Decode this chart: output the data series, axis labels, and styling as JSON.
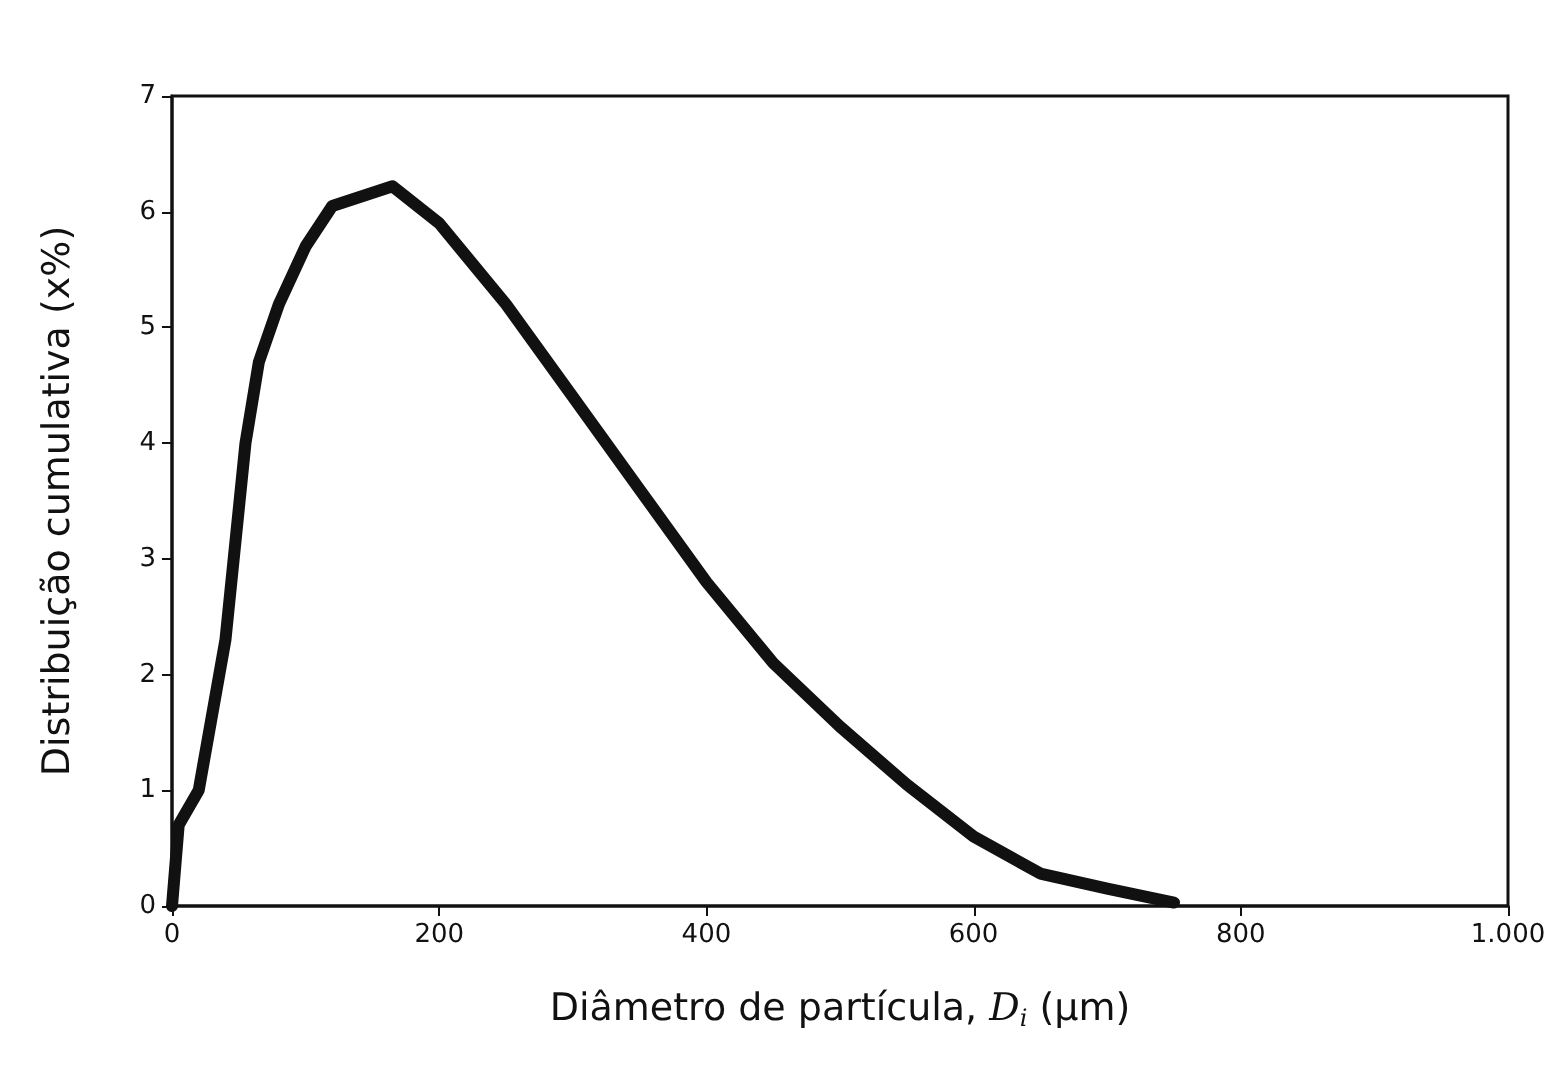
{
  "chart_data": {
    "type": "line",
    "xlabel": "Diâmetro de partícula, D$_{i}$ (µm)",
    "ylabel": "Distribuição cumulativa (x%)",
    "x": [
      0,
      5,
      20,
      40,
      55,
      65,
      80,
      100,
      120,
      165,
      200,
      250,
      300,
      350,
      400,
      450,
      500,
      550,
      600,
      650,
      700,
      750
    ],
    "series": [
      {
        "color": "#111111",
        "values": [
          0,
          0.7,
          1,
          2.3,
          4,
          4.7,
          5.2,
          5.7,
          6.05,
          6.22,
          5.9,
          5.2,
          4.4,
          3.6,
          2.8,
          2.1,
          1.55,
          1.05,
          0.6,
          0.28,
          0.15,
          0.03
        ]
      }
    ],
    "xlim": [
      0,
      1000
    ],
    "xticks": [
      0,
      200,
      400,
      600,
      800,
      {
        "value": 1000,
        "label": "1.000"
      }
    ],
    "ylim": [
      0,
      7
    ],
    "yticks": [
      0,
      1,
      2,
      3,
      4,
      5,
      6,
      7
    ],
    "grid": false,
    "marker": "none",
    "line_style": "solid"
  }
}
